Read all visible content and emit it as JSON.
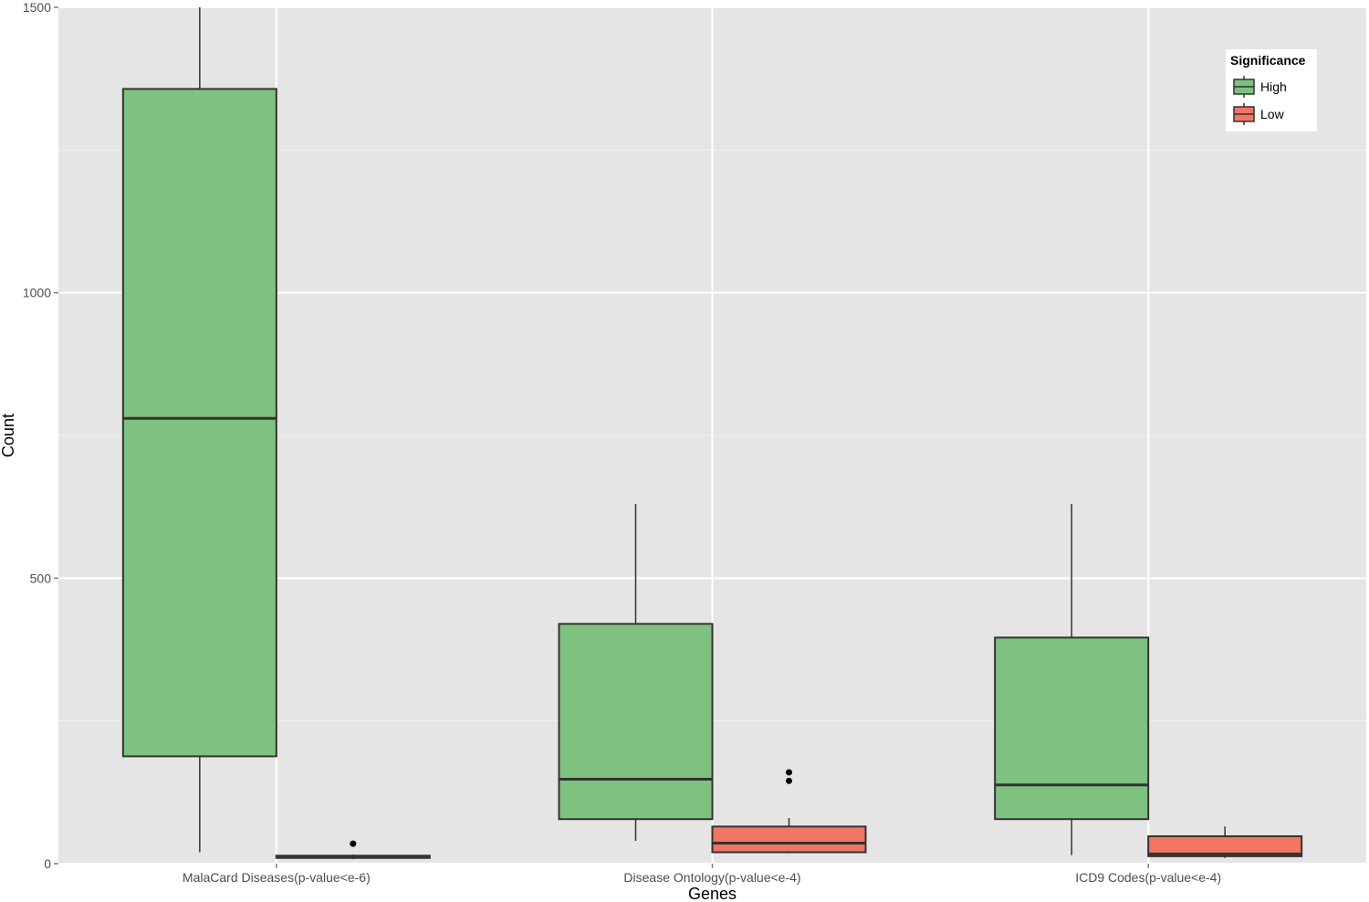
{
  "chart_data": {
    "type": "boxplot",
    "title": "",
    "xlabel": "Genes",
    "ylabel": "Count",
    "ylim": [
      0,
      1500
    ],
    "yticks": [
      0,
      500,
      1000,
      1500
    ],
    "grid": true,
    "legend_position": "top-right",
    "legend": {
      "title": "Significance",
      "entries": [
        {
          "name": "High",
          "color": "#7fc17f"
        },
        {
          "name": "Low",
          "color": "#f07563"
        }
      ]
    },
    "categories": [
      "MalaCard Diseases(p-value<e-6)",
      "Disease Ontology(p-value<e-4)",
      "ICD9 Codes(p-value<e-4)"
    ],
    "series": [
      {
        "name": "High",
        "color": "#7fc17f",
        "boxes": [
          {
            "whisker_low": 20,
            "q1": 188,
            "median": 780,
            "q3": 1357,
            "whisker_high": 1500,
            "outliers": []
          },
          {
            "whisker_low": 40,
            "q1": 78,
            "median": 148,
            "q3": 420,
            "whisker_high": 630,
            "outliers": []
          },
          {
            "whisker_low": 15,
            "q1": 78,
            "median": 138,
            "q3": 396,
            "whisker_high": 630,
            "outliers": []
          }
        ]
      },
      {
        "name": "Low",
        "color": "#f07563",
        "boxes": [
          {
            "whisker_low": 8,
            "q1": 10,
            "median": 12,
            "q3": 14,
            "whisker_high": 16,
            "outliers": [
              35
            ]
          },
          {
            "whisker_low": 18,
            "q1": 20,
            "median": 36,
            "q3": 65,
            "whisker_high": 80,
            "outliers": [
              145,
              160
            ]
          },
          {
            "whisker_low": 10,
            "q1": 13,
            "median": 17,
            "q3": 48,
            "whisker_high": 65,
            "outliers": []
          }
        ]
      }
    ]
  }
}
